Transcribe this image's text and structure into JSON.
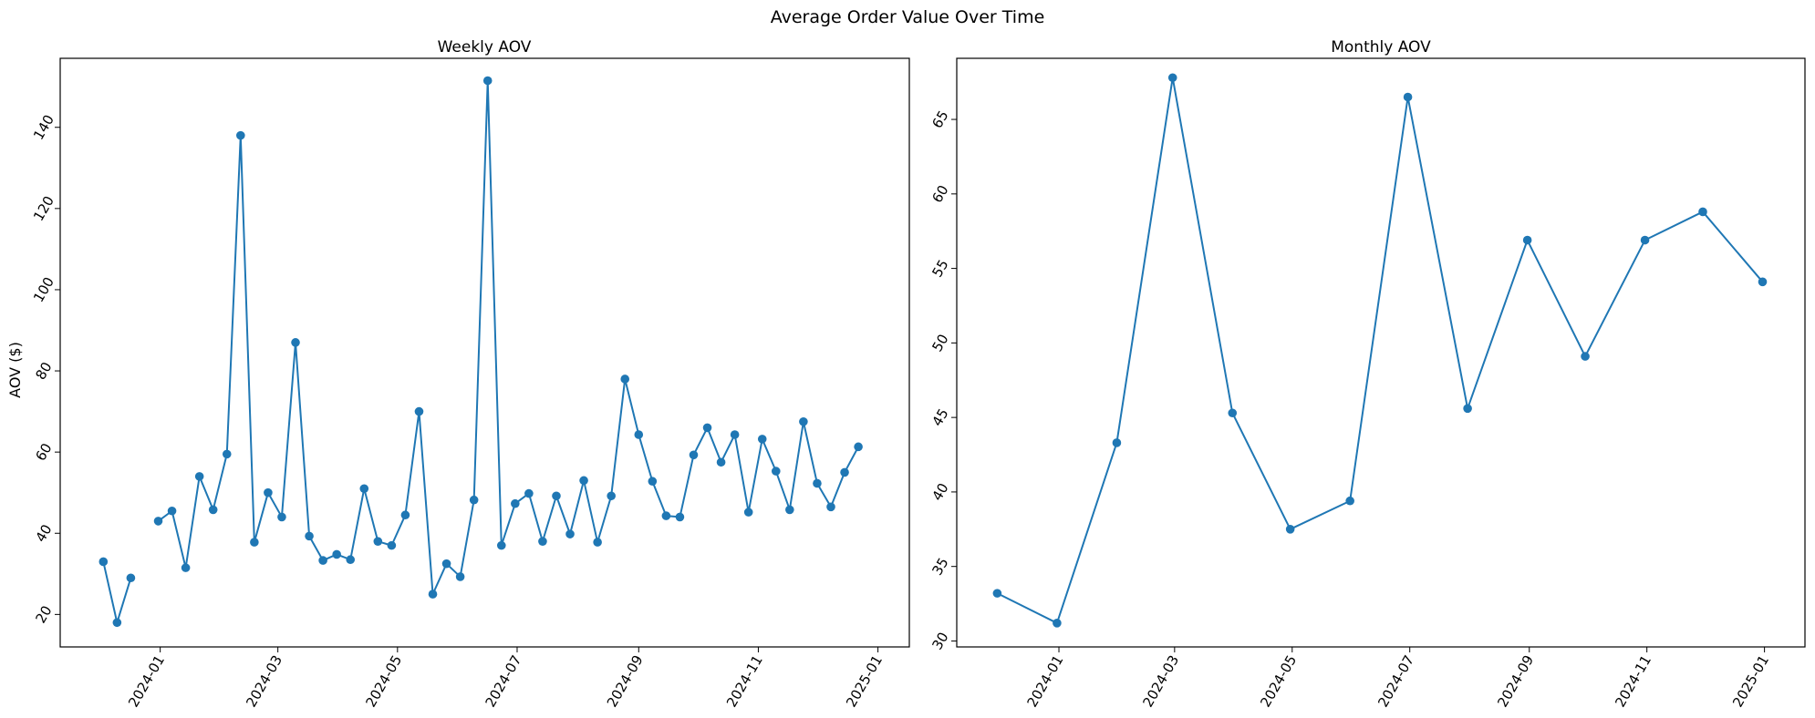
{
  "figure_title": "Average Order Value Over Time",
  "chart_data": [
    {
      "type": "line",
      "title": "Weekly AOV",
      "xlabel": "",
      "ylabel": "AOV ($)",
      "color": "#1f77b4",
      "marker": "circle",
      "grid": false,
      "xlim": [
        "2023-11-11",
        "2025-01-17"
      ],
      "ylim": [
        12,
        157
      ],
      "xticks": [
        "2024-01",
        "2024-03",
        "2024-05",
        "2024-07",
        "2024-09",
        "2024-11",
        "2025-01"
      ],
      "yticks": [
        20,
        40,
        60,
        80,
        100,
        120,
        140
      ],
      "segments": [
        [
          [
            "2023-12-03",
            33.0
          ],
          [
            "2023-12-10",
            18.0
          ],
          [
            "2023-12-17",
            29.0
          ]
        ],
        [
          [
            "2023-12-31",
            43.0
          ],
          [
            "2024-01-07",
            45.5
          ],
          [
            "2024-01-14",
            31.5
          ],
          [
            "2024-01-21",
            54.0
          ],
          [
            "2024-01-28",
            45.8
          ],
          [
            "2024-02-04",
            59.5
          ],
          [
            "2024-02-11",
            138.0
          ],
          [
            "2024-02-18",
            37.8
          ],
          [
            "2024-02-25",
            50.0
          ],
          [
            "2024-03-03",
            44.0
          ],
          [
            "2024-03-10",
            87.0
          ],
          [
            "2024-03-17",
            39.3
          ],
          [
            "2024-03-24",
            33.3
          ],
          [
            "2024-03-31",
            34.8
          ],
          [
            "2024-04-07",
            33.5
          ],
          [
            "2024-04-14",
            51.0
          ],
          [
            "2024-04-21",
            38.0
          ],
          [
            "2024-04-28",
            37.0
          ],
          [
            "2024-05-05",
            44.5
          ],
          [
            "2024-05-12",
            70.0
          ],
          [
            "2024-05-19",
            25.0
          ],
          [
            "2024-05-26",
            32.5
          ],
          [
            "2024-06-02",
            29.3
          ],
          [
            "2024-06-09",
            48.2
          ],
          [
            "2024-06-16",
            151.5
          ],
          [
            "2024-06-23",
            37.0
          ],
          [
            "2024-06-30",
            47.3
          ],
          [
            "2024-07-07",
            49.8
          ],
          [
            "2024-07-14",
            38.0
          ],
          [
            "2024-07-21",
            49.2
          ],
          [
            "2024-07-28",
            39.8
          ],
          [
            "2024-08-04",
            53.0
          ],
          [
            "2024-08-11",
            37.8
          ],
          [
            "2024-08-18",
            49.2
          ],
          [
            "2024-08-25",
            78.0
          ],
          [
            "2024-09-01",
            64.3
          ],
          [
            "2024-09-08",
            52.8
          ],
          [
            "2024-09-15",
            44.3
          ],
          [
            "2024-09-22",
            44.0
          ],
          [
            "2024-09-29",
            59.3
          ],
          [
            "2024-10-06",
            66.0
          ],
          [
            "2024-10-13",
            57.5
          ],
          [
            "2024-10-20",
            64.3
          ],
          [
            "2024-10-27",
            45.2
          ],
          [
            "2024-11-03",
            63.2
          ],
          [
            "2024-11-10",
            55.3
          ],
          [
            "2024-11-17",
            45.8
          ],
          [
            "2024-11-24",
            67.5
          ],
          [
            "2024-12-01",
            52.3
          ],
          [
            "2024-12-08",
            46.5
          ],
          [
            "2024-12-15",
            55.0
          ],
          [
            "2024-12-22",
            61.3
          ]
        ]
      ]
    },
    {
      "type": "line",
      "title": "Monthly AOV",
      "xlabel": "",
      "ylabel": "",
      "color": "#1f77b4",
      "marker": "circle",
      "grid": false,
      "xlim": [
        "2023-11-09",
        "2025-01-22"
      ],
      "ylim": [
        29.6,
        69.1
      ],
      "xticks": [
        "2024-01",
        "2024-03",
        "2024-05",
        "2024-07",
        "2024-09",
        "2024-11",
        "2025-01"
      ],
      "yticks": [
        30,
        35,
        40,
        45,
        50,
        55,
        60,
        65
      ],
      "segments": [
        [
          [
            "2023-11-30",
            33.2
          ],
          [
            "2023-12-31",
            31.2
          ],
          [
            "2024-01-31",
            43.3
          ],
          [
            "2024-02-29",
            67.8
          ],
          [
            "2024-03-31",
            45.3
          ],
          [
            "2024-04-30",
            37.5
          ],
          [
            "2024-05-31",
            39.4
          ],
          [
            "2024-06-30",
            66.5
          ],
          [
            "2024-07-31",
            45.6
          ],
          [
            "2024-08-31",
            56.9
          ],
          [
            "2024-09-30",
            49.1
          ],
          [
            "2024-10-31",
            56.9
          ],
          [
            "2024-11-30",
            58.8
          ],
          [
            "2024-12-31",
            54.1
          ]
        ]
      ]
    }
  ]
}
